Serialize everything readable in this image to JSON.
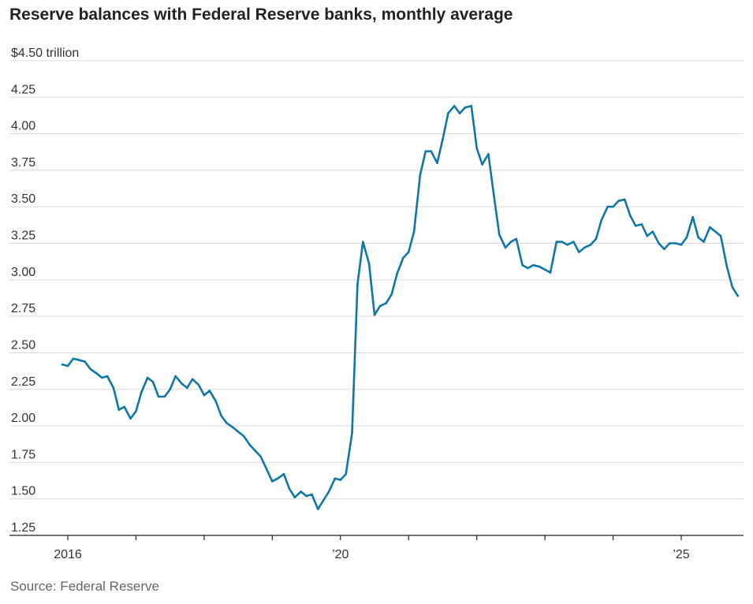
{
  "chart_data": {
    "type": "line",
    "title": "Reserve balances with Federal Reserve banks, monthly average",
    "ylabel": "$4.50 trillion",
    "xlabel": "",
    "source": "Source: Federal Reserve",
    "ylim": [
      1.25,
      4.5
    ],
    "yticks": [
      1.25,
      1.5,
      1.75,
      2.0,
      2.25,
      2.5,
      2.75,
      3.0,
      3.25,
      3.5,
      3.75,
      4.0,
      4.25,
      4.5
    ],
    "ytick_labels": [
      "1.25",
      "1.50",
      "1.75",
      "2.00",
      "2.25",
      "2.50",
      "2.75",
      "3.00",
      "3.25",
      "3.50",
      "3.75",
      "4.00",
      "4.25",
      "$4.50 trillion"
    ],
    "xlim": [
      2015.92,
      2025.9
    ],
    "xticks": [
      2016,
      2017,
      2018,
      2019,
      2020,
      2021,
      2022,
      2023,
      2024,
      2025
    ],
    "xtick_labels": [
      "2016",
      "",
      "",
      "",
      "’20",
      "",
      "",
      "",
      "",
      "’25"
    ],
    "line_color": "#0f77a8",
    "series": [
      {
        "name": "Reserve balances",
        "x": [
          2015.92,
          2016.0,
          2016.08,
          2016.17,
          2016.25,
          2016.33,
          2016.42,
          2016.5,
          2016.58,
          2016.67,
          2016.75,
          2016.83,
          2016.92,
          2017.0,
          2017.08,
          2017.17,
          2017.25,
          2017.33,
          2017.42,
          2017.5,
          2017.58,
          2017.67,
          2017.75,
          2017.83,
          2017.92,
          2018.0,
          2018.08,
          2018.17,
          2018.25,
          2018.33,
          2018.42,
          2018.5,
          2018.58,
          2018.67,
          2018.75,
          2018.83,
          2018.92,
          2019.0,
          2019.08,
          2019.17,
          2019.25,
          2019.33,
          2019.42,
          2019.5,
          2019.58,
          2019.67,
          2019.75,
          2019.83,
          2019.92,
          2020.0,
          2020.08,
          2020.17,
          2020.25,
          2020.33,
          2020.42,
          2020.5,
          2020.58,
          2020.67,
          2020.75,
          2020.83,
          2020.92,
          2021.0,
          2021.08,
          2021.17,
          2021.25,
          2021.33,
          2021.42,
          2021.5,
          2021.58,
          2021.67,
          2021.75,
          2021.83,
          2021.92,
          2022.0,
          2022.08,
          2022.17,
          2022.25,
          2022.33,
          2022.42,
          2022.5,
          2022.58,
          2022.67,
          2022.75,
          2022.83,
          2022.92,
          2023.0,
          2023.08,
          2023.17,
          2023.25,
          2023.33,
          2023.42,
          2023.5,
          2023.58,
          2023.67,
          2023.75,
          2023.83,
          2023.92,
          2024.0,
          2024.08,
          2024.17,
          2024.25,
          2024.33,
          2024.42,
          2024.5,
          2024.58,
          2024.67,
          2024.75,
          2024.83,
          2024.92,
          2025.0,
          2025.08,
          2025.17,
          2025.25,
          2025.33,
          2025.42,
          2025.5,
          2025.58,
          2025.67,
          2025.75,
          2025.83
        ],
        "values": [
          2.42,
          2.41,
          2.46,
          2.45,
          2.44,
          2.39,
          2.36,
          2.33,
          2.34,
          2.26,
          2.11,
          2.13,
          2.05,
          2.1,
          2.23,
          2.33,
          2.3,
          2.2,
          2.2,
          2.25,
          2.34,
          2.29,
          2.26,
          2.32,
          2.28,
          2.21,
          2.24,
          2.17,
          2.07,
          2.02,
          1.99,
          1.96,
          1.93,
          1.87,
          1.83,
          1.79,
          1.7,
          1.62,
          1.64,
          1.67,
          1.57,
          1.51,
          1.55,
          1.52,
          1.53,
          1.43,
          1.49,
          1.55,
          1.64,
          1.63,
          1.67,
          1.95,
          2.97,
          3.26,
          3.11,
          2.76,
          2.82,
          2.84,
          2.9,
          3.04,
          3.15,
          3.19,
          3.33,
          3.72,
          3.88,
          3.88,
          3.8,
          3.96,
          4.14,
          4.19,
          4.14,
          4.18,
          4.19,
          3.9,
          3.79,
          3.86,
          3.58,
          3.31,
          3.22,
          3.26,
          3.28,
          3.1,
          3.08,
          3.1,
          3.09,
          3.07,
          3.05,
          3.26,
          3.26,
          3.24,
          3.26,
          3.19,
          3.22,
          3.24,
          3.28,
          3.41,
          3.5,
          3.5,
          3.54,
          3.55,
          3.44,
          3.37,
          3.38,
          3.3,
          3.33,
          3.25,
          3.21,
          3.25,
          3.25,
          3.24,
          3.29,
          3.43,
          3.29,
          3.26,
          3.36,
          3.33,
          3.3,
          3.09,
          2.95,
          2.89
        ]
      }
    ]
  }
}
